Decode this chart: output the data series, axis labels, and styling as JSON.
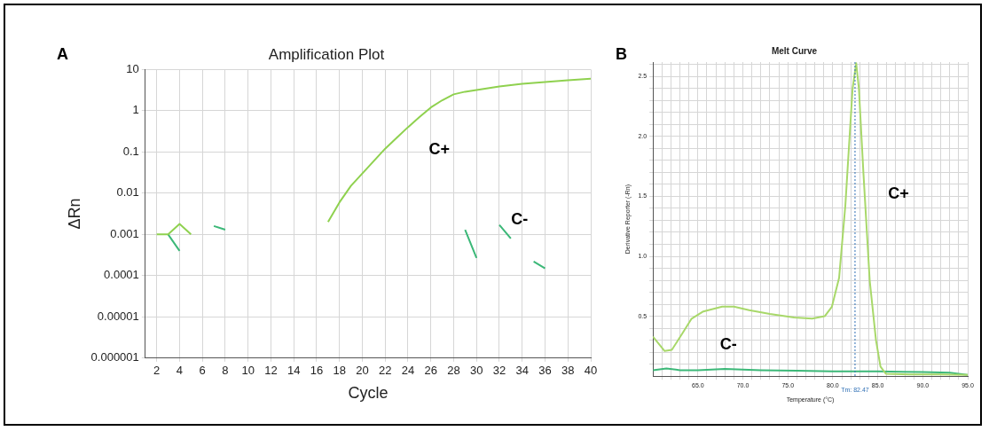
{
  "chart_data": [
    {
      "type": "line",
      "title": "Amplification Plot",
      "xlabel": "Cycle",
      "ylabel": "ΔRn",
      "log": "y",
      "grid": true,
      "marker": "none",
      "line_style": "solid",
      "legend": false,
      "xlim": [
        1,
        40
      ],
      "xticks": [
        2,
        4,
        6,
        8,
        10,
        12,
        14,
        16,
        18,
        20,
        22,
        24,
        26,
        28,
        30,
        32,
        34,
        36,
        38,
        40
      ],
      "ylim": [
        1e-06,
        10
      ],
      "yticks": [
        {
          "value": 1e-06,
          "label": "0.000001"
        },
        {
          "value": 1e-05,
          "label": "0.00001"
        },
        0.0001,
        0.001,
        0.01,
        0.1,
        1,
        10
      ],
      "series": [
        {
          "name": "C+",
          "color": "#8fd14f",
          "x": [
            2,
            3,
            4,
            5,
            10,
            17,
            18,
            19,
            20,
            21,
            22,
            23,
            24,
            25,
            26,
            27,
            28,
            29,
            30,
            32,
            34,
            36,
            38,
            40
          ],
          "values": [
            0.001,
            0.001,
            0.0018,
            0.001,
            null,
            0.002,
            0.006,
            0.015,
            0.03,
            0.06,
            0.12,
            0.22,
            0.4,
            0.7,
            1.2,
            1.8,
            2.5,
            2.9,
            3.2,
            3.9,
            4.5,
            5.0,
            5.5,
            6
          ]
        },
        {
          "name": "C-",
          "color": "#3cb878",
          "x": [
            3,
            4,
            5,
            7,
            8,
            10,
            29,
            30,
            31,
            32,
            33,
            34,
            35,
            36
          ],
          "values": [
            0.001,
            0.0004,
            null,
            0.0016,
            0.0013,
            null,
            0.0013,
            0.00027,
            null,
            0.0017,
            0.0008,
            null,
            0.00022,
            0.00015
          ]
        }
      ],
      "annotations": [
        "A"
      ]
    },
    {
      "type": "line",
      "title": "Melt Curve",
      "xlabel": "Temperature (°C)",
      "ylabel": "Derivative Reporter (-Rn)",
      "grid": true,
      "marker": "none",
      "line_style": "solid",
      "legend": false,
      "xlim": [
        60,
        95
      ],
      "xticks": [
        {
          "value": 61,
          "label": null
        },
        {
          "value": 62,
          "label": null
        },
        {
          "value": 63,
          "label": null
        },
        {
          "value": 64,
          "label": null
        },
        {
          "value": 65,
          "label": "65.0"
        },
        {
          "value": 66,
          "label": null
        },
        {
          "value": 67,
          "label": null
        },
        {
          "value": 68,
          "label": null
        },
        {
          "value": 69,
          "label": null
        },
        {
          "value": 70,
          "label": "70.0"
        },
        {
          "value": 71,
          "label": null
        },
        {
          "value": 72,
          "label": null
        },
        {
          "value": 73,
          "label": null
        },
        {
          "value": 74,
          "label": null
        },
        {
          "value": 75,
          "label": "75.0"
        },
        {
          "value": 76,
          "label": null
        },
        {
          "value": 77,
          "label": null
        },
        {
          "value": 78,
          "label": null
        },
        {
          "value": 79,
          "label": null
        },
        {
          "value": 80,
          "label": "80.0"
        },
        {
          "value": 81,
          "label": null
        },
        {
          "value": 82,
          "label": null
        },
        {
          "value": 83,
          "label": null
        },
        {
          "value": 84,
          "label": null
        },
        {
          "value": 85,
          "label": "85.0"
        },
        {
          "value": 86,
          "label": null
        },
        {
          "value": 87,
          "label": null
        },
        {
          "value": 88,
          "label": null
        },
        {
          "value": 89,
          "label": null
        },
        {
          "value": 90,
          "label": "90.0"
        },
        {
          "value": 91,
          "label": null
        },
        {
          "value": 92,
          "label": null
        },
        {
          "value": 93,
          "label": null
        },
        {
          "value": 94,
          "label": null
        },
        {
          "value": 95,
          "label": "95.0"
        }
      ],
      "ylim": [
        0,
        2.62
      ],
      "yticks": [
        {
          "value": 0.1,
          "label": null
        },
        {
          "value": 0.2,
          "label": null
        },
        {
          "value": 0.3,
          "label": null
        },
        {
          "value": 0.4,
          "label": null
        },
        {
          "value": 0.5,
          "label": "0.5"
        },
        {
          "value": 0.6,
          "label": null
        },
        {
          "value": 0.7,
          "label": null
        },
        {
          "value": 0.8,
          "label": null
        },
        {
          "value": 0.9,
          "label": null
        },
        {
          "value": 1,
          "label": "1.0"
        },
        {
          "value": 1.1,
          "label": null
        },
        {
          "value": 1.2,
          "label": null
        },
        {
          "value": 1.3,
          "label": null
        },
        {
          "value": 1.4,
          "label": null
        },
        {
          "value": 1.5,
          "label": "1.5"
        },
        {
          "value": 1.6,
          "label": null
        },
        {
          "value": 1.7,
          "label": null
        },
        {
          "value": 1.8,
          "label": null
        },
        {
          "value": 1.9,
          "label": null
        },
        {
          "value": 2,
          "label": "2.0"
        },
        {
          "value": 2.1,
          "label": null
        },
        {
          "value": 2.2,
          "label": null
        },
        {
          "value": 2.3,
          "label": null
        },
        {
          "value": 2.4,
          "label": null
        },
        {
          "value": 2.5,
          "label": "2.5"
        },
        {
          "value": 2.6,
          "label": null
        }
      ],
      "series": [
        {
          "name": "C+",
          "color": "#a8d86a",
          "x": [
            60,
            61.3,
            62.1,
            63.3,
            64.3,
            65.6,
            67.7,
            69,
            70.7,
            73,
            75.7,
            77.7,
            79.1,
            79.9,
            80.7,
            81.4,
            81.9,
            82.2,
            82.6,
            82.9,
            83.4,
            84.1,
            84.8,
            85.3,
            85.9,
            88.5,
            91.8,
            95
          ],
          "values": [
            0.33,
            0.21,
            0.22,
            0.36,
            0.48,
            0.54,
            0.58,
            0.58,
            0.55,
            0.52,
            0.49,
            0.48,
            0.5,
            0.58,
            0.82,
            1.43,
            2.04,
            2.4,
            2.61,
            2.4,
            1.7,
            0.8,
            0.3,
            0.08,
            0.02,
            0.015,
            0.015,
            0.01
          ]
        },
        {
          "name": "C-",
          "color": "#3cb878",
          "x": [
            60,
            61.5,
            63,
            65,
            68,
            72,
            76,
            80,
            85,
            90,
            93,
            95
          ],
          "values": [
            0.05,
            0.065,
            0.05,
            0.05,
            0.06,
            0.05,
            0.045,
            0.04,
            0.04,
            0.035,
            0.03,
            0.01
          ]
        }
      ],
      "ref_lines": [
        {
          "axis": "x",
          "value": 82.47,
          "label": "Tm: 82.47",
          "color": "#2f6fb5",
          "line_style": "dotted"
        }
      ],
      "annotations": [
        "B"
      ]
    }
  ]
}
